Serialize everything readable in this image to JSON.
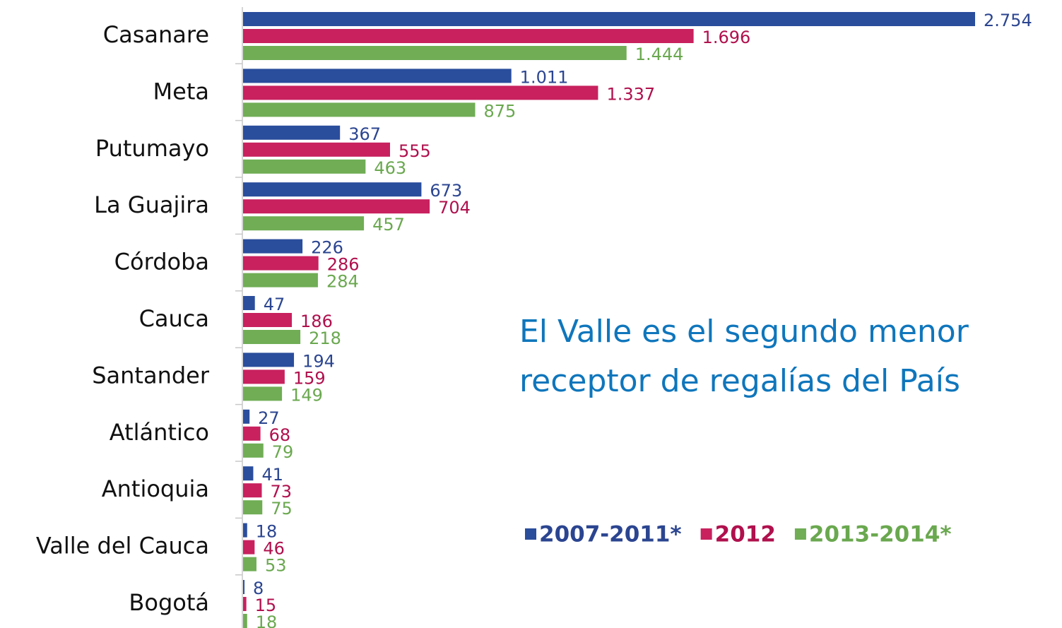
{
  "chart_data": {
    "type": "hbar",
    "categories": [
      "Casanare",
      "Meta",
      "Putumayo",
      "La Guajira",
      "Córdoba",
      "Cauca",
      "Santander",
      "Atlántico",
      "Antioquia",
      "Valle del Cauca",
      "Bogotá"
    ],
    "series": [
      {
        "name": "2007-2011*",
        "color": "#2a4d9c",
        "values": [
          2754,
          1011,
          367,
          673,
          226,
          47,
          194,
          27,
          41,
          18,
          8
        ],
        "value_labels": [
          "2.754",
          "1.011",
          "367",
          "673",
          "226",
          "47",
          "194",
          "27",
          "41",
          "18",
          "8"
        ]
      },
      {
        "name": "2012",
        "color": "#c8215e",
        "values": [
          1696,
          1337,
          555,
          704,
          286,
          186,
          159,
          68,
          73,
          46,
          15
        ],
        "value_labels": [
          "1.696",
          "1.337",
          "555",
          "704",
          "286",
          "186",
          "159",
          "68",
          "73",
          "46",
          "15"
        ]
      },
      {
        "name": "2013-2014*",
        "color": "#70ad55",
        "values": [
          1444,
          875,
          463,
          457,
          284,
          218,
          149,
          79,
          75,
          53,
          18
        ],
        "value_labels": [
          "1.444",
          "875",
          "463",
          "457",
          "284",
          "218",
          "149",
          "79",
          "75",
          "53",
          "18"
        ]
      }
    ],
    "annotations": [
      "El Valle es el segundo menor",
      "receptor de regalías del País"
    ],
    "legend": "right"
  }
}
